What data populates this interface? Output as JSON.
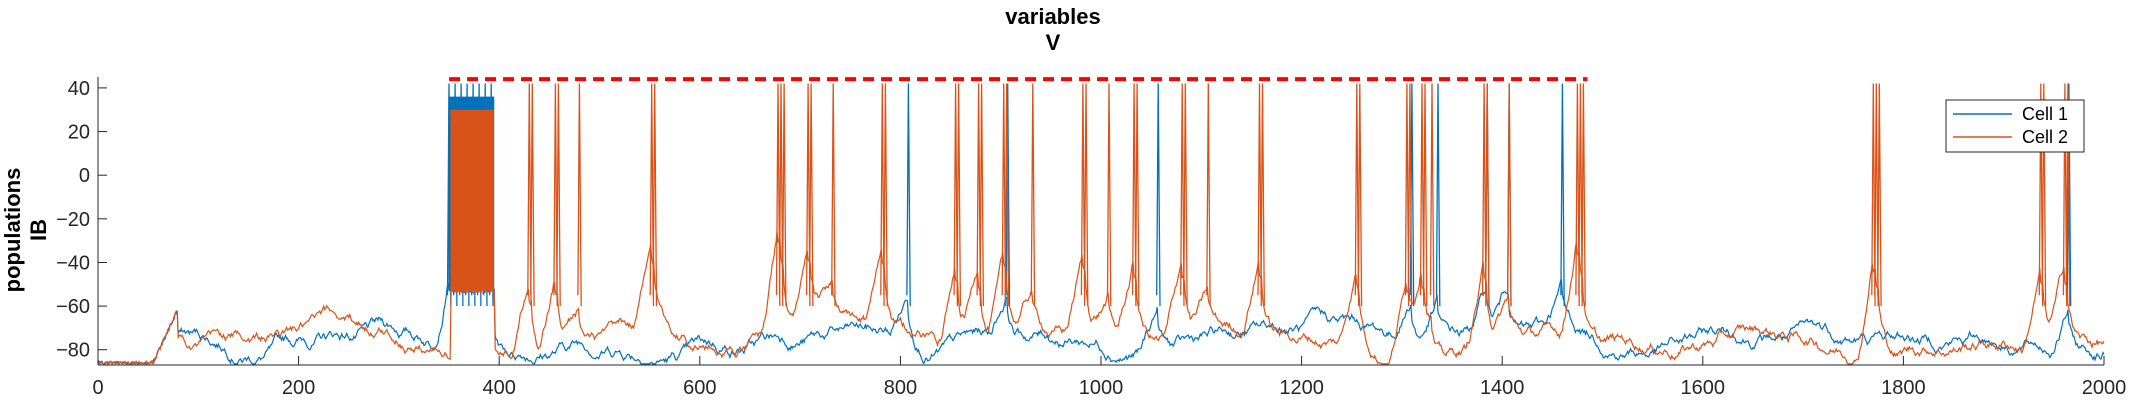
{
  "chart_data": {
    "type": "line",
    "title_lines": [
      "variables",
      "V"
    ],
    "ylabel_lines": [
      "populations",
      "IB"
    ],
    "xlabel": "",
    "xlim": [
      0,
      2000
    ],
    "ylim": [
      -87,
      45
    ],
    "x_ticks": [
      0,
      200,
      400,
      600,
      800,
      1000,
      1200,
      1400,
      1600,
      1800,
      2000
    ],
    "y_ticks": [
      -80,
      -60,
      -40,
      -20,
      0,
      20,
      40
    ],
    "grid": false,
    "legend": {
      "placement": "top-right"
    },
    "baseline": -75,
    "series": [
      {
        "name": "Cell 1",
        "color": "#0072BD",
        "spike_times": [
          350,
          356,
          362,
          368,
          374,
          380,
          386,
          392,
          808,
          907,
          1057,
          1310,
          1336,
          1385,
          1407,
          1460,
          1965
        ],
        "peak": 42,
        "bursts": [
          {
            "start": 350,
            "end": 395,
            "floor": -53,
            "top": 36
          }
        ]
      },
      {
        "name": "Cell 2",
        "color": "#D95319",
        "spike_times": [
          430,
          433,
          456,
          459,
          480,
          552,
          555,
          678,
          681,
          684,
          708,
          711,
          733,
          782,
          785,
          855,
          858,
          878,
          881,
          903,
          906,
          932,
          982,
          985,
          1008,
          1033,
          1036,
          1081,
          1084,
          1107,
          1158,
          1161,
          1255,
          1258,
          1305,
          1308,
          1320,
          1323,
          1330,
          1382,
          1385,
          1407,
          1475,
          1478,
          1481,
          1770,
          1773,
          1776,
          1937,
          1940,
          1961,
          1964
        ],
        "peak": 42,
        "bursts": [
          {
            "start": 352,
            "end": 395,
            "floor": -53,
            "top": 30
          }
        ]
      }
    ],
    "reference_line": {
      "color": "#FF0000",
      "style": "dashed",
      "y": 44,
      "x_start": 350,
      "x_end": 1485
    }
  }
}
